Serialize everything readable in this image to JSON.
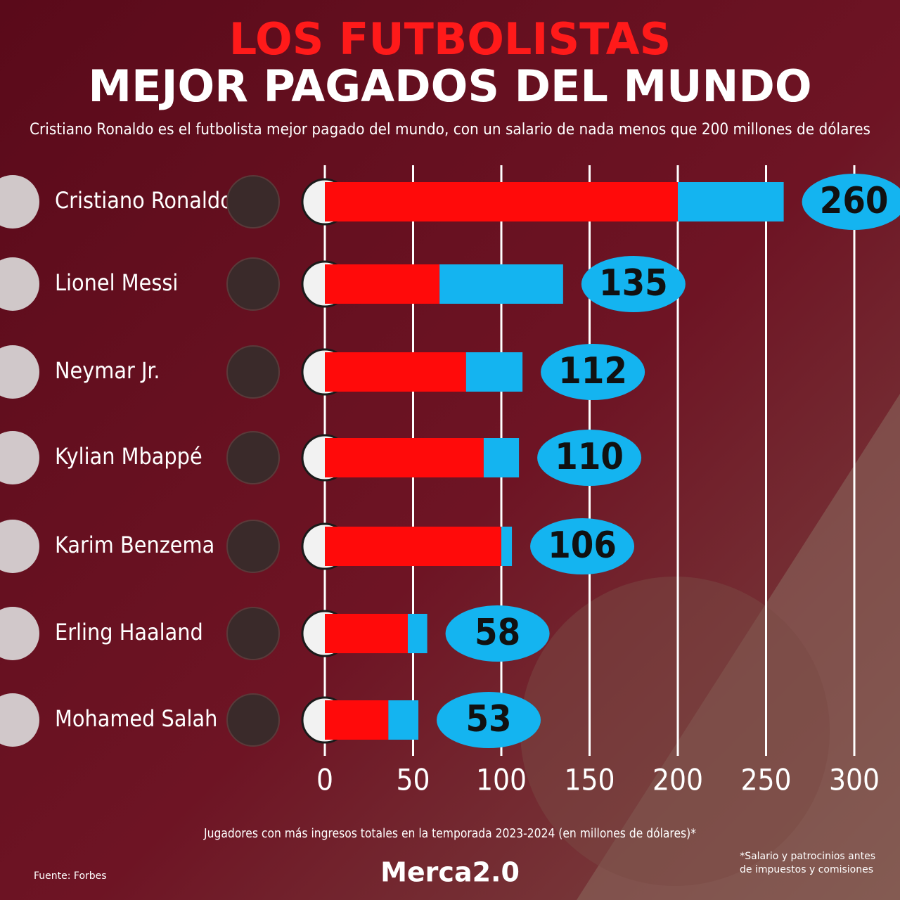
{
  "chart_data": {
    "type": "stacked_barh",
    "title": "LOS FUTBOLISTAS",
    "title2": "MEJOR PAGADOS DEL MUNDO",
    "subtitle": "Cristiano Ronaldo es el futbolista mejor pagado del mundo, con un salario de nada menos que 200 millones de dólares",
    "categories": [
      "Cristiano Ronaldo",
      "Lionel Messi",
      "Neymar Jr.",
      "Kylian Mbappé",
      "Karim Benzema",
      "Erling Haaland",
      "Mohamed Salah"
    ],
    "series": [
      {
        "color": "#ff0a0a",
        "values": [
          200,
          65,
          80,
          90,
          100,
          47,
          36
        ]
      },
      {
        "color": "#14b4f0",
        "values": [
          60,
          70,
          32,
          20,
          6,
          11,
          17
        ]
      }
    ],
    "totals": [
      260,
      135,
      112,
      110,
      106,
      58,
      53
    ],
    "xlim": [
      0,
      300
    ],
    "xticks": [
      0,
      50,
      100,
      150,
      200,
      250,
      300
    ],
    "grid": true,
    "xlabel": "Jugadores con más ingresos totales en la temporada 2023-2024 (en millones de dólares)*",
    "source": "Fuente: Forbes",
    "note": [
      "*Salario y patrocinios antes",
      "de impuestos y comisiones"
    ],
    "brand": "Merca2.0"
  }
}
